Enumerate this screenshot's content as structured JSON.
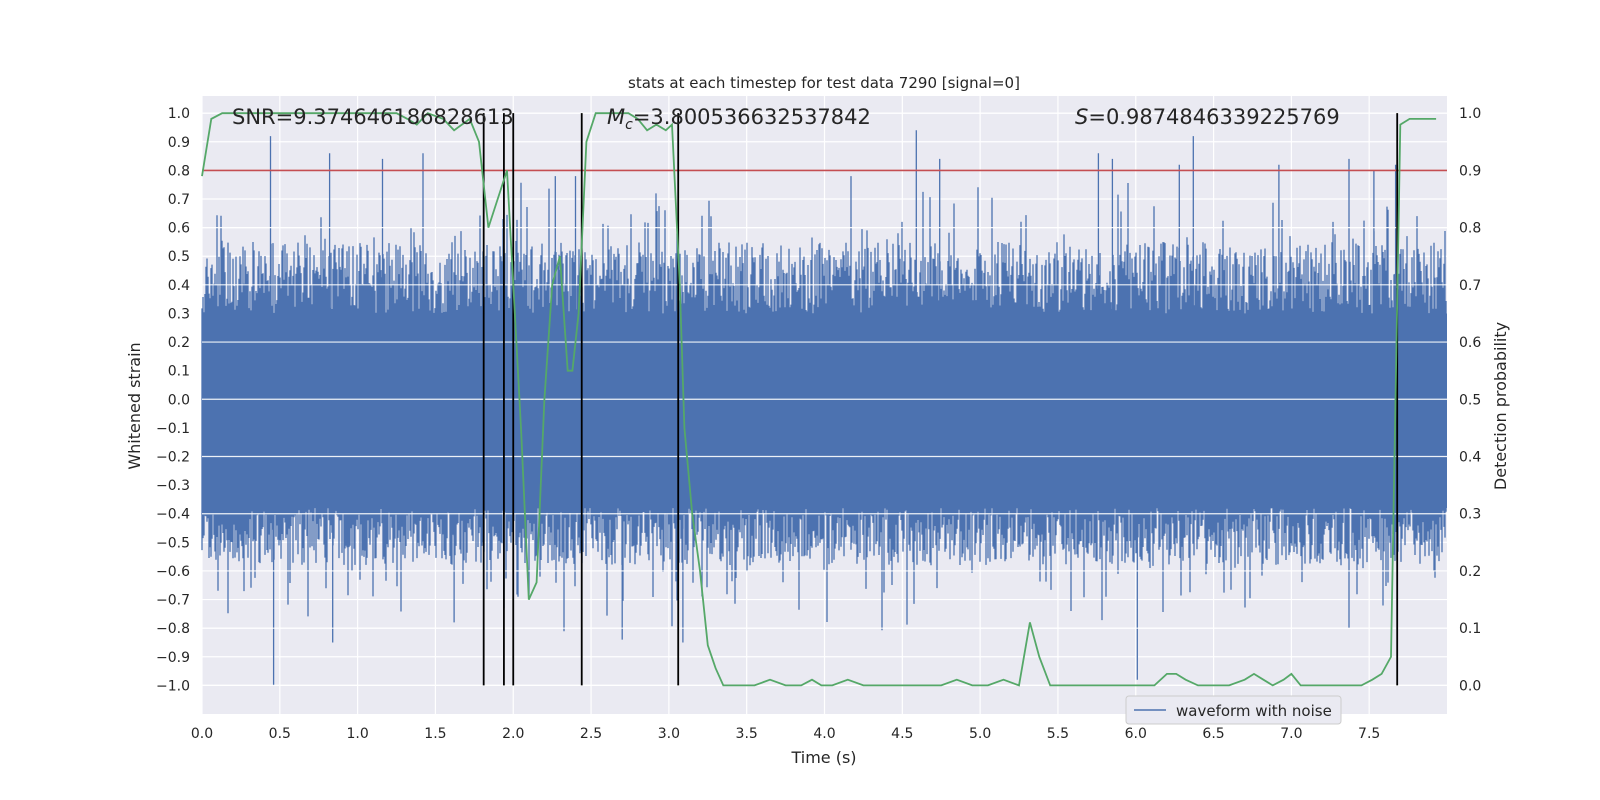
{
  "chart_data": {
    "type": "line",
    "title": "stats at each timestep for test data 7290 [signal=0]",
    "xlabel": "Time (s)",
    "ylabel_left": "Whitened strain",
    "ylabel_right": "Detection probability",
    "xlim": [
      0.0,
      8.0
    ],
    "ylim_left": [
      -1.1,
      1.06
    ],
    "ylim_right": [
      -0.05,
      1.03
    ],
    "x_ticks": [
      0.0,
      0.5,
      1.0,
      1.5,
      2.0,
      2.5,
      3.0,
      3.5,
      4.0,
      4.5,
      5.0,
      5.5,
      6.0,
      6.5,
      7.0,
      7.5
    ],
    "x_tick_labels": [
      "0.0",
      "0.5",
      "1.0",
      "1.5",
      "2.0",
      "2.5",
      "3.0",
      "3.5",
      "4.0",
      "4.5",
      "5.0",
      "5.5",
      "6.0",
      "6.5",
      "7.0",
      "7.5"
    ],
    "y_left_ticks": [
      1.0,
      0.9,
      0.8,
      0.7,
      0.6,
      0.5,
      0.4,
      0.3,
      0.2,
      0.1,
      0.0,
      -0.1,
      -0.2,
      -0.3,
      -0.4,
      -0.5,
      -0.6,
      -0.7,
      -0.8,
      -0.9,
      -1.0
    ],
    "y_left_tick_labels": [
      "1.0",
      "0.9",
      "0.8",
      "0.7",
      "0.6",
      "0.5",
      "0.4",
      "0.3",
      "0.2",
      "0.1",
      "0.0",
      "−0.1",
      "−0.2",
      "−0.3",
      "−0.4",
      "−0.5",
      "−0.6",
      "−0.7",
      "−0.8",
      "−0.9",
      "−1.0"
    ],
    "y_right_ticks": [
      1.0,
      0.9,
      0.8,
      0.7,
      0.6,
      0.5,
      0.4,
      0.3,
      0.2,
      0.1,
      0.0
    ],
    "y_right_tick_labels": [
      "1.0",
      "0.9",
      "0.8",
      "0.7",
      "0.6",
      "0.5",
      "0.4",
      "0.3",
      "0.2",
      "0.1",
      "0.0"
    ],
    "annotations": {
      "snr": "SNR=9.374646186828613",
      "mc_symbol": "M",
      "mc_sub": "c",
      "mc_value": "=3.800536632537842",
      "s_symbol": "S",
      "s_value": "=0.9874846339225769"
    },
    "threshold": 0.9,
    "event_lines": [
      1.81,
      1.94,
      2.0,
      2.44,
      3.06,
      7.68
    ],
    "legend": {
      "label": "waveform with noise",
      "location": "lower-right"
    },
    "series": [
      {
        "name": "waveform with noise",
        "color": "#4c72b0",
        "duration": 8.0,
        "envelope_upper": 0.5,
        "envelope_lower": -0.4,
        "spikes": [
          [
            0.44,
            0.92
          ],
          [
            0.46,
            -1.0
          ],
          [
            0.82,
            0.86
          ],
          [
            0.84,
            -0.85
          ],
          [
            1.16,
            0.84
          ],
          [
            1.42,
            0.86
          ],
          [
            1.62,
            -0.78
          ],
          [
            2.27,
            0.78
          ],
          [
            2.4,
            0.78
          ],
          [
            2.7,
            -0.84
          ],
          [
            3.09,
            -0.85
          ],
          [
            4.59,
            0.94
          ],
          [
            4.74,
            0.84
          ],
          [
            5.76,
            0.86
          ],
          [
            6.01,
            -0.98
          ],
          [
            6.37,
            0.92
          ],
          [
            6.92,
            0.82
          ],
          [
            7.37,
            0.84
          ],
          [
            7.53,
            0.8
          ],
          [
            7.67,
            0.82
          ],
          [
            5.85,
            0.84
          ],
          [
            6.28,
            0.82
          ],
          [
            4.17,
            0.78
          ]
        ]
      },
      {
        "name": "detection probability",
        "color": "#55a868",
        "x": [
          0.0,
          0.06,
          0.13,
          0.3,
          0.5,
          0.75,
          1.0,
          1.25,
          1.32,
          1.38,
          1.45,
          1.55,
          1.62,
          1.67,
          1.72,
          1.78,
          1.84,
          1.9,
          1.96,
          2.0,
          2.05,
          2.1,
          2.15,
          2.2,
          2.25,
          2.3,
          2.35,
          2.38,
          2.42,
          2.47,
          2.53,
          2.58,
          2.65,
          2.7,
          2.74,
          2.8,
          2.86,
          2.92,
          2.98,
          3.02,
          3.07,
          3.1,
          3.15,
          3.2,
          3.25,
          3.3,
          3.35,
          3.45,
          3.55,
          3.65,
          3.75,
          3.85,
          3.92,
          3.98,
          4.05,
          4.15,
          4.25,
          4.35,
          4.45,
          4.55,
          4.65,
          4.75,
          4.85,
          4.95,
          5.05,
          5.15,
          5.25,
          5.32,
          5.38,
          5.45,
          5.55,
          5.7,
          5.85,
          6.0,
          6.12,
          6.2,
          6.26,
          6.32,
          6.4,
          6.5,
          6.6,
          6.7,
          6.76,
          6.82,
          6.88,
          6.95,
          7.0,
          7.06,
          7.15,
          7.25,
          7.35,
          7.45,
          7.52,
          7.58,
          7.64,
          7.7,
          7.76,
          7.82,
          7.88,
          7.93
        ],
        "values": [
          0.89,
          0.99,
          1.0,
          1.0,
          1.0,
          1.0,
          1.0,
          1.0,
          0.99,
          0.98,
          1.0,
          0.99,
          0.97,
          0.98,
          0.99,
          0.95,
          0.8,
          0.85,
          0.9,
          0.7,
          0.45,
          0.15,
          0.18,
          0.5,
          0.7,
          0.75,
          0.55,
          0.55,
          0.65,
          0.95,
          1.0,
          1.0,
          1.0,
          1.0,
          1.0,
          0.99,
          0.97,
          0.98,
          0.97,
          0.98,
          0.7,
          0.45,
          0.3,
          0.2,
          0.07,
          0.03,
          0.0,
          0.0,
          0.0,
          0.01,
          0.0,
          0.0,
          0.01,
          0.0,
          0.0,
          0.01,
          0.0,
          0.0,
          0.0,
          0.0,
          0.0,
          0.0,
          0.01,
          0.0,
          0.0,
          0.01,
          0.0,
          0.11,
          0.05,
          0.0,
          0.0,
          0.0,
          0.0,
          0.0,
          0.0,
          0.02,
          0.02,
          0.01,
          0.0,
          0.0,
          0.0,
          0.01,
          0.02,
          0.01,
          0.0,
          0.01,
          0.02,
          0.0,
          0.0,
          0.0,
          0.0,
          0.0,
          0.01,
          0.02,
          0.05,
          0.98,
          0.99,
          0.99,
          0.99,
          0.99
        ]
      }
    ]
  }
}
